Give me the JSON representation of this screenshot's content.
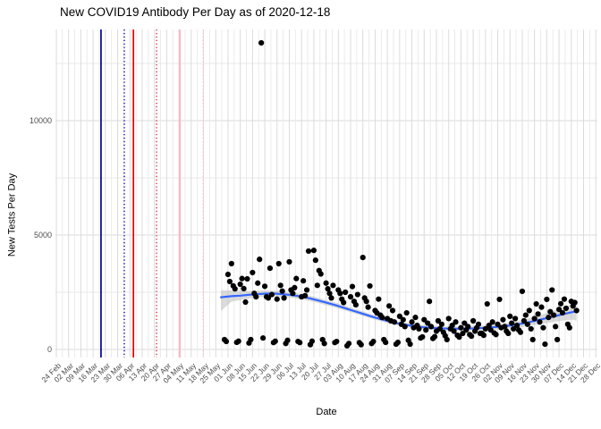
{
  "title": "New COVID19 Antibody Per Day as of 2020-12-18",
  "colors": {
    "background": "#FFFFFF",
    "point": "#000000",
    "smoother": "#3366FF",
    "ribbon": "#BEBEBE",
    "grid_major": "#DBDBDB",
    "grid_minor": "#E9E9E9",
    "axis_text": "#4D4D4D",
    "title_text": "#000000"
  },
  "chart_data": {
    "type": "scatter",
    "title": "New COVID19 Antibody Per Day as of 2020-12-18",
    "xlabel": "Date",
    "ylabel": "New Tests Per Day",
    "x_axis": {
      "tick_labels": [
        "24 Feb",
        "02 Mar",
        "09 Mar",
        "16 Mar",
        "23 Mar",
        "30 Mar",
        "06 Apr",
        "13 Apr",
        "20 Apr",
        "27 Apr",
        "04 May",
        "11 May",
        "18 May",
        "25 May",
        "01 Jun",
        "08 Jun",
        "15 Jun",
        "22 Jun",
        "29 Jun",
        "06 Jul",
        "13 Jul",
        "20 Jul",
        "27 Jul",
        "03 Aug",
        "10 Aug",
        "17 Aug",
        "24 Aug",
        "31 Aug",
        "07 Sep",
        "14 Sep",
        "21 Sep",
        "28 Sep",
        "05 Oct",
        "12 Oct",
        "19 Oct",
        "26 Oct",
        "02 Nov",
        "09 Nov",
        "16 Nov",
        "23 Nov",
        "30 Nov",
        "07 Dec",
        "14 Dec",
        "21 Dec",
        "28 Dec"
      ],
      "tick_interval_days": 7,
      "range_days": [
        0,
        308
      ],
      "label_angle_deg": 45
    },
    "y_axis": {
      "tick_values": [
        0,
        5000,
        10000
      ],
      "minor_tick_values": [
        2500,
        7500,
        12500
      ],
      "ylim": [
        0,
        14000
      ]
    },
    "grid": true,
    "legend": false,
    "vlines": [
      {
        "day": 25.5,
        "color": "#00009B",
        "style": "solid",
        "width": 1.7
      },
      {
        "day": 38.8,
        "color": "#1414B4",
        "style": "dotted",
        "width": 1.5
      },
      {
        "day": 44.0,
        "color": "#E60000",
        "style": "solid",
        "width": 1.7
      },
      {
        "day": 57.2,
        "color": "#D43C3C",
        "style": "dotted",
        "width": 1.5
      },
      {
        "day": 70.5,
        "color": "#FFAFBE",
        "style": "solid",
        "width": 1.7
      },
      {
        "day": 83.8,
        "color": "#FFC3CD",
        "style": "dotted",
        "width": 1.5
      }
    ],
    "points_unit": "days since 2020-02-24 (tick 0), value = new tests per day",
    "points": [
      [
        96,
        430
      ],
      [
        97,
        350
      ],
      [
        103,
        310
      ],
      [
        104,
        360
      ],
      [
        110,
        280
      ],
      [
        111,
        430
      ],
      [
        117,
        13400
      ],
      [
        118,
        500
      ],
      [
        124,
        300
      ],
      [
        125,
        360
      ],
      [
        131,
        260
      ],
      [
        132,
        400
      ],
      [
        138,
        350
      ],
      [
        139,
        300
      ],
      [
        145,
        210
      ],
      [
        146,
        360
      ],
      [
        152,
        430
      ],
      [
        153,
        260
      ],
      [
        159,
        300
      ],
      [
        160,
        350
      ],
      [
        166,
        160
      ],
      [
        167,
        260
      ],
      [
        173,
        300
      ],
      [
        174,
        210
      ],
      [
        180,
        260
      ],
      [
        181,
        350
      ],
      [
        187,
        430
      ],
      [
        188,
        310
      ],
      [
        194,
        230
      ],
      [
        195,
        310
      ],
      [
        201,
        400
      ],
      [
        202,
        234
      ],
      [
        208,
        500
      ],
      [
        209,
        550
      ],
      [
        215,
        480
      ],
      [
        216,
        560
      ],
      [
        222,
        600
      ],
      [
        223,
        430
      ],
      [
        229,
        620
      ],
      [
        230,
        540
      ],
      [
        236,
        650
      ],
      [
        237,
        580
      ],
      [
        243,
        700
      ],
      [
        244,
        620
      ],
      [
        250,
        720
      ],
      [
        251,
        650
      ],
      [
        257,
        800
      ],
      [
        258,
        700
      ],
      [
        264,
        850
      ],
      [
        265,
        750
      ],
      [
        271,
        900
      ],
      [
        272,
        430
      ],
      [
        278,
        950
      ],
      [
        279,
        230
      ],
      [
        285,
        1000
      ],
      [
        286,
        430
      ],
      [
        292,
        1100
      ],
      [
        293,
        950
      ],
      [
        98,
        3280
      ],
      [
        99,
        2970
      ],
      [
        100,
        3750
      ],
      [
        101,
        2780
      ],
      [
        102,
        2650
      ],
      [
        105,
        2850
      ],
      [
        106,
        3100
      ],
      [
        107,
        2660
      ],
      [
        108,
        2070
      ],
      [
        109,
        3085
      ],
      [
        112,
        3360
      ],
      [
        113,
        2450
      ],
      [
        114,
        2300
      ],
      [
        115,
        2900
      ],
      [
        116,
        3940
      ],
      [
        119,
        2760
      ],
      [
        120,
        2300
      ],
      [
        121,
        2250
      ],
      [
        122,
        3550
      ],
      [
        123,
        2400
      ],
      [
        126,
        2200
      ],
      [
        127,
        3750
      ],
      [
        128,
        2800
      ],
      [
        129,
        2550
      ],
      [
        130,
        2250
      ],
      [
        133,
        3830
      ],
      [
        134,
        2600
      ],
      [
        135,
        2450
      ],
      [
        136,
        2700
      ],
      [
        137,
        3100
      ],
      [
        140,
        2300
      ],
      [
        141,
        3000
      ],
      [
        142,
        2350
      ],
      [
        143,
        2600
      ],
      [
        144,
        4300
      ],
      [
        147,
        4330
      ],
      [
        148,
        3900
      ],
      [
        149,
        2800
      ],
      [
        150,
        3450
      ],
      [
        151,
        3300
      ],
      [
        154,
        2900
      ],
      [
        155,
        2650
      ],
      [
        156,
        2450
      ],
      [
        157,
        2250
      ],
      [
        158,
        2800
      ],
      [
        161,
        2600
      ],
      [
        162,
        2450
      ],
      [
        163,
        2200
      ],
      [
        164,
        2050
      ],
      [
        165,
        2500
      ],
      [
        168,
        2300
      ],
      [
        169,
        2750
      ],
      [
        170,
        2100
      ],
      [
        171,
        1950
      ],
      [
        172,
        2400
      ],
      [
        175,
        4020
      ],
      [
        176,
        2250
      ],
      [
        177,
        2100
      ],
      [
        178,
        1850
      ],
      [
        179,
        2775
      ],
      [
        182,
        1700
      ],
      [
        183,
        1600
      ],
      [
        184,
        2200
      ],
      [
        185,
        1500
      ],
      [
        186,
        1400
      ],
      [
        189,
        1350
      ],
      [
        190,
        1900
      ],
      [
        191,
        1250
      ],
      [
        192,
        1700
      ],
      [
        193,
        1200
      ],
      [
        196,
        1450
      ],
      [
        197,
        1100
      ],
      [
        198,
        1300
      ],
      [
        199,
        1000
      ],
      [
        200,
        1600
      ],
      [
        203,
        1200
      ],
      [
        204,
        950
      ],
      [
        205,
        1400
      ],
      [
        206,
        1050
      ],
      [
        207,
        900
      ],
      [
        210,
        1300
      ],
      [
        211,
        850
      ],
      [
        212,
        1150
      ],
      [
        213,
        2100
      ],
      [
        214,
        1000
      ],
      [
        217,
        800
      ],
      [
        218,
        1250
      ],
      [
        219,
        900
      ],
      [
        220,
        1100
      ],
      [
        221,
        750
      ],
      [
        224,
        1350
      ],
      [
        225,
        900
      ],
      [
        226,
        1050
      ],
      [
        227,
        800
      ],
      [
        228,
        1200
      ],
      [
        231,
        950
      ],
      [
        232,
        700
      ],
      [
        233,
        1150
      ],
      [
        234,
        850
      ],
      [
        235,
        1000
      ],
      [
        238,
        1250
      ],
      [
        239,
        800
      ],
      [
        240,
        950
      ],
      [
        241,
        1100
      ],
      [
        242,
        700
      ],
      [
        245,
        900
      ],
      [
        246,
        1990
      ],
      [
        247,
        1050
      ],
      [
        248,
        850
      ],
      [
        249,
        1200
      ],
      [
        252,
        1100
      ],
      [
        253,
        2190
      ],
      [
        254,
        950
      ],
      [
        255,
        1300
      ],
      [
        256,
        1000
      ],
      [
        259,
        1450
      ],
      [
        260,
        1150
      ],
      [
        261,
        900
      ],
      [
        262,
        1350
      ],
      [
        263,
        1050
      ],
      [
        266,
        2540
      ],
      [
        267,
        1250
      ],
      [
        268,
        1500
      ],
      [
        269,
        1100
      ],
      [
        270,
        1700
      ],
      [
        273,
        1350
      ],
      [
        274,
        1990
      ],
      [
        275,
        1550
      ],
      [
        276,
        1200
      ],
      [
        277,
        1850
      ],
      [
        280,
        2190
      ],
      [
        281,
        1400
      ],
      [
        282,
        1650
      ],
      [
        283,
        2600
      ],
      [
        284,
        1500
      ],
      [
        287,
        1750
      ],
      [
        288,
        2000
      ],
      [
        289,
        1600
      ],
      [
        290,
        2200
      ],
      [
        291,
        1800
      ],
      [
        294,
        2100
      ],
      [
        295,
        1900
      ],
      [
        296,
        2050
      ],
      [
        297,
        1700
      ]
    ],
    "smoother_line": [
      [
        94,
        2280
      ],
      [
        100,
        2330
      ],
      [
        105,
        2350
      ],
      [
        110,
        2390
      ],
      [
        115,
        2420
      ],
      [
        120,
        2440
      ],
      [
        125,
        2440
      ],
      [
        130,
        2410
      ],
      [
        135,
        2370
      ],
      [
        140,
        2310
      ],
      [
        145,
        2230
      ],
      [
        150,
        2130
      ],
      [
        155,
        2030
      ],
      [
        160,
        1920
      ],
      [
        165,
        1800
      ],
      [
        170,
        1680
      ],
      [
        175,
        1560
      ],
      [
        180,
        1440
      ],
      [
        185,
        1330
      ],
      [
        190,
        1230
      ],
      [
        195,
        1140
      ],
      [
        200,
        1070
      ],
      [
        205,
        1010
      ],
      [
        210,
        970
      ],
      [
        215,
        940
      ],
      [
        220,
        920
      ],
      [
        225,
        910
      ],
      [
        230,
        905
      ],
      [
        235,
        910
      ],
      [
        240,
        925
      ],
      [
        245,
        945
      ],
      [
        250,
        975
      ],
      [
        255,
        1010
      ],
      [
        260,
        1060
      ],
      [
        265,
        1120
      ],
      [
        270,
        1195
      ],
      [
        275,
        1280
      ],
      [
        280,
        1370
      ],
      [
        285,
        1460
      ],
      [
        290,
        1555
      ],
      [
        295,
        1640
      ],
      [
        297,
        1675
      ]
    ],
    "ribbon": [
      [
        94,
        1680,
        2590
      ],
      [
        100,
        2090,
        2580
      ],
      [
        105,
        2160,
        2560
      ],
      [
        110,
        2230,
        2560
      ],
      [
        115,
        2280,
        2570
      ],
      [
        120,
        2310,
        2580
      ],
      [
        125,
        2310,
        2570
      ],
      [
        130,
        2290,
        2540
      ],
      [
        135,
        2250,
        2490
      ],
      [
        140,
        2190,
        2430
      ],
      [
        145,
        2110,
        2350
      ],
      [
        150,
        2020,
        2250
      ],
      [
        155,
        1920,
        2140
      ],
      [
        160,
        1810,
        2030
      ],
      [
        165,
        1700,
        1910
      ],
      [
        170,
        1580,
        1780
      ],
      [
        175,
        1460,
        1660
      ],
      [
        180,
        1350,
        1540
      ],
      [
        185,
        1240,
        1430
      ],
      [
        190,
        1140,
        1320
      ],
      [
        195,
        1050,
        1230
      ],
      [
        200,
        980,
        1160
      ],
      [
        205,
        920,
        1100
      ],
      [
        210,
        880,
        1060
      ],
      [
        215,
        850,
        1030
      ],
      [
        220,
        830,
        1010
      ],
      [
        225,
        820,
        1000
      ],
      [
        230,
        815,
        1000
      ],
      [
        235,
        815,
        1005
      ],
      [
        240,
        825,
        1030
      ],
      [
        245,
        840,
        1055
      ],
      [
        250,
        860,
        1090
      ],
      [
        255,
        890,
        1140
      ],
      [
        260,
        930,
        1200
      ],
      [
        265,
        975,
        1270
      ],
      [
        270,
        1030,
        1360
      ],
      [
        275,
        1090,
        1470
      ],
      [
        280,
        1150,
        1590
      ],
      [
        285,
        1210,
        1720
      ],
      [
        290,
        1270,
        1860
      ],
      [
        295,
        1300,
        2000
      ],
      [
        297,
        1250,
        2150
      ]
    ]
  }
}
